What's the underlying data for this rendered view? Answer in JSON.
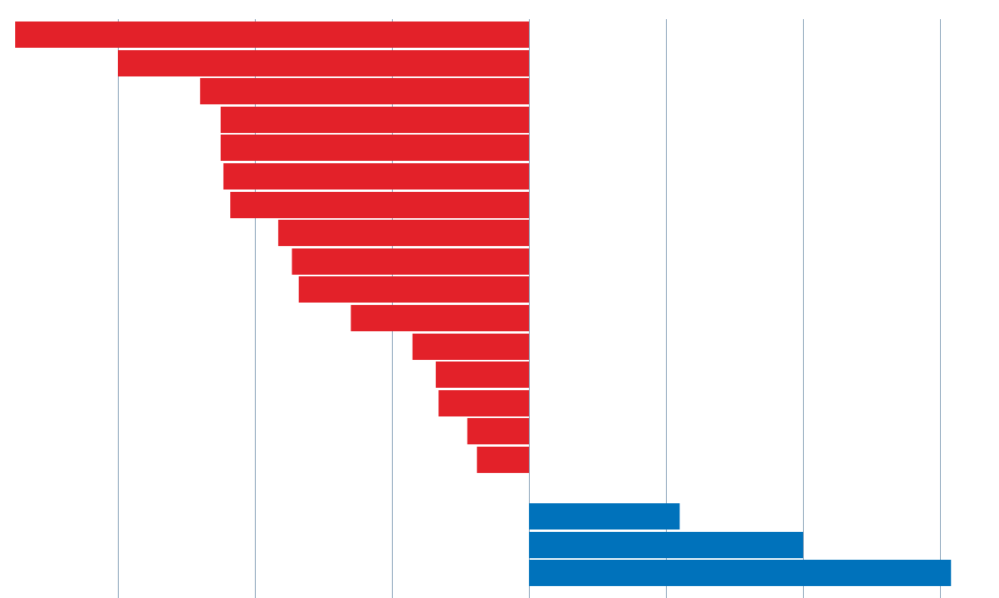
{
  "chart_data": {
    "type": "bar",
    "orientation": "horizontal",
    "title": "",
    "xlabel": "",
    "ylabel": "",
    "grid": true,
    "xlim": [
      -3.75,
      3.1
    ],
    "gridlines_x": [
      -3,
      -2,
      -1,
      0,
      1,
      2,
      3
    ],
    "categories": [
      "",
      "",
      "",
      "",
      "",
      "",
      "",
      "",
      "",
      "",
      "",
      "",
      "",
      "",
      "",
      "",
      "",
      "",
      "",
      ""
    ],
    "values": [
      -3.75,
      -3.0,
      -2.4,
      -2.25,
      -2.25,
      -2.23,
      -2.18,
      -1.83,
      -1.73,
      -1.68,
      -1.3,
      -0.85,
      -0.68,
      -0.66,
      -0.45,
      -0.38,
      0,
      1.1,
      2.0,
      3.08
    ],
    "colors": {
      "negative": "#e32129",
      "positive": "#0072bb",
      "grid": "#7f9bb3"
    }
  }
}
